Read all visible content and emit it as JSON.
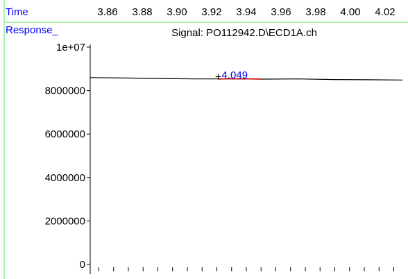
{
  "chart_data": {
    "type": "line",
    "title": "Signal: PO112942.D\\ECD1A.ch",
    "xlabel": "Time",
    "ylabel": "Response_",
    "x_axis_position": "top",
    "x_ticks": [
      3.86,
      3.88,
      3.9,
      3.92,
      3.94,
      3.96,
      3.98,
      4.0,
      4.02
    ],
    "x_tick_labels": [
      "3.86",
      "3.88",
      "3.90",
      "3.92",
      "3.94",
      "3.96",
      "3.98",
      "4.00",
      "4.02"
    ],
    "y_ticks": [
      0,
      2000000,
      4000000,
      6000000,
      8000000,
      10000000
    ],
    "y_tick_labels": [
      "0",
      "2000000",
      "4000000",
      "6000000",
      "8000000",
      "1e+07"
    ],
    "xlim": [
      3.85,
      4.03
    ],
    "ylim": [
      0,
      10000000
    ],
    "grid": false,
    "series": [
      {
        "color": "#000000",
        "x": [
          3.85,
          3.87,
          3.89,
          3.91,
          3.93,
          3.949,
          3.97,
          3.99,
          4.01,
          4.03
        ],
        "y": [
          8600000,
          8580000,
          8560000,
          8540000,
          8540000,
          8530000,
          8540000,
          8510000,
          8500000,
          8490000
        ]
      },
      {
        "color": "#cc0000",
        "x": [
          3.924,
          3.93,
          3.936,
          3.942,
          3.949
        ],
        "y": [
          8530000,
          8550000,
          8550000,
          8540000,
          8530000
        ]
      }
    ],
    "annotations": [
      {
        "text": "4.049",
        "x": 3.925,
        "y": 8750000,
        "color": "#0000ff",
        "marker": "+"
      }
    ],
    "colors": {
      "axis_label": "#0000ff",
      "frame": "#90ee90",
      "baseline": "#000000",
      "peak": "#cc0000"
    }
  }
}
